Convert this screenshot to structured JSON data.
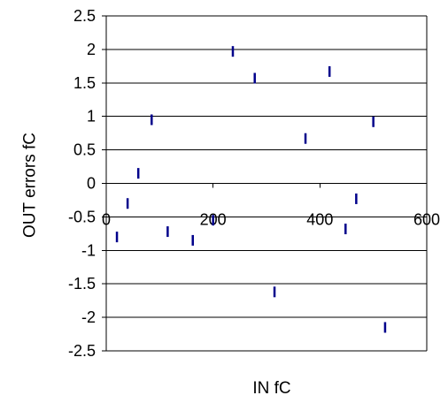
{
  "chart_data": {
    "type": "scatter",
    "title": "",
    "xlabel": "IN fC",
    "ylabel": "OUT errors fC",
    "xlim": [
      0,
      600
    ],
    "ylim": [
      -2.5,
      2.5
    ],
    "x_ticks": [
      0,
      200,
      400,
      600
    ],
    "x_tick_labels": [
      "0",
      "200",
      "400",
      "600"
    ],
    "y_ticks": [
      2.5,
      2,
      1.5,
      1,
      0.5,
      0,
      -0.5,
      -1,
      -1.5,
      -2,
      -2.5
    ],
    "y_tick_labels": [
      "2.5",
      "2",
      "1.5",
      "1",
      "0.5",
      "0",
      "-0.5",
      "-1",
      "-1.5",
      "-2",
      "-2.5"
    ],
    "grid": "horizontal",
    "legend": "none",
    "marker": "vertical-dash",
    "series": [
      {
        "values": [
          {
            "x": 20,
            "y": -0.8
          },
          {
            "x": 40,
            "y": -0.3
          },
          {
            "x": 60,
            "y": 0.15
          },
          {
            "x": 85,
            "y": 0.95
          },
          {
            "x": 115,
            "y": -0.72
          },
          {
            "x": 162,
            "y": -0.85
          },
          {
            "x": 200,
            "y": -0.55
          },
          {
            "x": 237,
            "y": 1.97
          },
          {
            "x": 278,
            "y": 1.57
          },
          {
            "x": 315,
            "y": -1.62
          },
          {
            "x": 373,
            "y": 0.67
          },
          {
            "x": 418,
            "y": 1.67
          },
          {
            "x": 448,
            "y": -0.68
          },
          {
            "x": 468,
            "y": -0.23
          },
          {
            "x": 500,
            "y": 0.92
          },
          {
            "x": 522,
            "y": -2.15
          }
        ]
      }
    ],
    "colors": {
      "marker": "#00008b",
      "grid": "#000000",
      "axis": "#000000"
    }
  }
}
